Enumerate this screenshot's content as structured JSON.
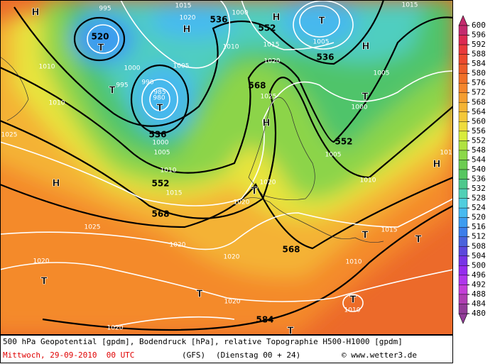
{
  "map": {
    "labels": [
      "H",
      "995",
      "1015",
      "1020",
      "H",
      "536",
      "1000",
      "H",
      "552",
      "T",
      "1015",
      "520",
      "T",
      "1010",
      "1015",
      "1005",
      "536",
      "H",
      "1010",
      "1000",
      "995",
      "990",
      "985",
      "980",
      "T",
      "T",
      "1005",
      "568",
      "1020",
      "1025",
      "1005",
      "T",
      "1000",
      "1010",
      "H",
      "536",
      "1000",
      "1005",
      "1010",
      "552",
      "1015",
      "552",
      "1005",
      "1025",
      "H",
      "T",
      "1020",
      "1020",
      "1010",
      "H",
      "101",
      "568",
      "1025",
      "1020",
      "1020",
      "568",
      "T",
      "1015",
      "T",
      "1010",
      "1020",
      "T",
      "T",
      "1020",
      "T",
      "1010",
      "584",
      "1020",
      "T"
    ]
  },
  "legend": {
    "ticks": [
      600,
      596,
      592,
      588,
      584,
      580,
      576,
      572,
      568,
      564,
      560,
      556,
      552,
      548,
      544,
      540,
      536,
      532,
      528,
      524,
      520,
      516,
      512,
      508,
      504,
      500,
      496,
      492,
      488,
      484,
      480
    ],
    "colors": [
      "#c42a6e",
      "#dc2a52",
      "#e83a3c",
      "#ec4a2e",
      "#ec5c2a",
      "#f07028",
      "#f4862c",
      "#f49e30",
      "#f4b434",
      "#f4c838",
      "#eedc3c",
      "#d8ec3c",
      "#b0e240",
      "#8cd848",
      "#6ccc52",
      "#56c660",
      "#4ec88c",
      "#50d0b6",
      "#50cede",
      "#46baf0",
      "#3c9cf0",
      "#3c7eea",
      "#4a62dc",
      "#5c48dc",
      "#7834e6",
      "#962cee",
      "#b036ec",
      "#c43ed8",
      "#b03eb2",
      "#923c98"
    ]
  },
  "caption": {
    "line1": "500 hPa Geopotential [gpdm], Bodendruck [hPa], relative Topographie H500-H1000 [gpdm]",
    "date": "Mittwoch, 29-09-2010  00 UTC",
    "model": "(GFS)",
    "run": "(Dienstag 00 + 24)",
    "credit": "© www.wetter3.de"
  }
}
